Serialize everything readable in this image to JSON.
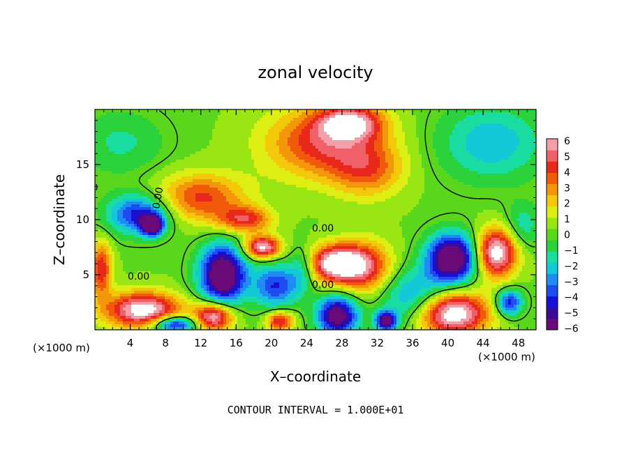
{
  "chart_data": {
    "type": "heatmap",
    "title": "zonal velocity",
    "xlabel": "X–coordinate",
    "ylabel": "Z–coordinate",
    "x_units_left": "(×1000 m)",
    "x_units_right": "(×1000 m)",
    "footer": "CONTOUR INTERVAL = 1.000E+01",
    "xlim": [
      0,
      50
    ],
    "ylim": [
      0,
      20
    ],
    "x_ticks": [
      4,
      8,
      12,
      16,
      20,
      24,
      28,
      32,
      36,
      40,
      44,
      48
    ],
    "x_tick_labels": [
      "4",
      "8",
      "12",
      "16",
      "20",
      "24",
      "28",
      "32",
      "36",
      "40",
      "44",
      "48"
    ],
    "y_ticks": [
      5,
      10,
      15
    ],
    "y_tick_labels": [
      "5",
      "10",
      "15"
    ],
    "colorbar": {
      "range": [
        -6,
        6
      ],
      "tick_labels": [
        "6",
        "5",
        "4",
        "3",
        "2",
        "1",
        "0",
        "−1",
        "−2",
        "−3",
        "−4",
        "−5",
        "−6"
      ],
      "colors": [
        "#6a0a78",
        "#3a0a9a",
        "#1410d8",
        "#1e4cf0",
        "#1e8cf2",
        "#14c8d8",
        "#18dca0",
        "#2cd23c",
        "#5ad61c",
        "#9ae614",
        "#dcee14",
        "#f4c80a",
        "#f4960a",
        "#f05a0a",
        "#e8281a",
        "#f06068",
        "#f4a0a8"
      ]
    },
    "contour_labels": [
      "0.00",
      "0.00",
      "0.00",
      "0.00"
    ],
    "blobs": [
      {
        "x": 26,
        "y": 17,
        "v": 4.5,
        "rx": 6.5,
        "ry": 3.2
      },
      {
        "x": 29,
        "y": 18.8,
        "v": 5.2,
        "rx": 3.5,
        "ry": 1.5
      },
      {
        "x": 31,
        "y": 14.5,
        "v": 3.0,
        "rx": 4,
        "ry": 2.5
      },
      {
        "x": 12,
        "y": 12,
        "v": 4.0,
        "rx": 5,
        "ry": 2.2
      },
      {
        "x": 17,
        "y": 10,
        "v": 4.2,
        "rx": 3,
        "ry": 1.2
      },
      {
        "x": 19,
        "y": 7.5,
        "v": 6.5,
        "rx": 2,
        "ry": 1.0
      },
      {
        "x": 27.5,
        "y": 6,
        "v": 7.5,
        "rx": 3.2,
        "ry": 1.7
      },
      {
        "x": 31,
        "y": 5.5,
        "v": 3.8,
        "rx": 3,
        "ry": 2.5
      },
      {
        "x": 45.5,
        "y": 7,
        "v": 7.0,
        "rx": 2.3,
        "ry": 2.2
      },
      {
        "x": 5.5,
        "y": 1.8,
        "v": 7.0,
        "rx": 4.2,
        "ry": 1.6
      },
      {
        "x": 13.5,
        "y": 1.2,
        "v": 6.5,
        "rx": 2.2,
        "ry": 1.3
      },
      {
        "x": 21,
        "y": 0.8,
        "v": 5.0,
        "rx": 1.5,
        "ry": 0.9
      },
      {
        "x": 40.5,
        "y": 1.5,
        "v": 7.5,
        "rx": 4.0,
        "ry": 2.0
      },
      {
        "x": 0.7,
        "y": 5.5,
        "v": 4.5,
        "rx": 1.2,
        "ry": 2.5
      },
      {
        "x": 14.5,
        "y": 5,
        "v": -8.0,
        "rx": 2.6,
        "ry": 2.7
      },
      {
        "x": 20.5,
        "y": 4,
        "v": -4.5,
        "rx": 2.5,
        "ry": 2.0
      },
      {
        "x": 40.5,
        "y": 6.5,
        "v": -8.0,
        "rx": 2.8,
        "ry": 2.2
      },
      {
        "x": 36,
        "y": 3,
        "v": -3.5,
        "rx": 4,
        "ry": 2.5
      },
      {
        "x": 5,
        "y": 10.5,
        "v": -5.0,
        "rx": 3.5,
        "ry": 1.8
      },
      {
        "x": 6.5,
        "y": 9.5,
        "v": -7.5,
        "rx": 1.2,
        "ry": 0.9
      },
      {
        "x": 27.5,
        "y": 1.3,
        "v": -7.0,
        "rx": 2.3,
        "ry": 1.8
      },
      {
        "x": 33,
        "y": 0.8,
        "v": -6.5,
        "rx": 1.2,
        "ry": 0.9
      },
      {
        "x": 47,
        "y": 2.5,
        "v": -5.0,
        "rx": 1.5,
        "ry": 1.2
      },
      {
        "x": 45,
        "y": 17,
        "v": -2.8,
        "rx": 6,
        "ry": 3.5
      },
      {
        "x": 3,
        "y": 17,
        "v": -1.6,
        "rx": 5,
        "ry": 3
      },
      {
        "x": 9,
        "y": 0.5,
        "v": -6.0,
        "rx": 2.5,
        "ry": 0.8
      },
      {
        "x": 23.5,
        "y": 5.5,
        "v": -2.5,
        "rx": 1.5,
        "ry": 2.0
      },
      {
        "x": 48.5,
        "y": 9.5,
        "v": -2.0,
        "rx": 2,
        "ry": 2
      }
    ]
  }
}
